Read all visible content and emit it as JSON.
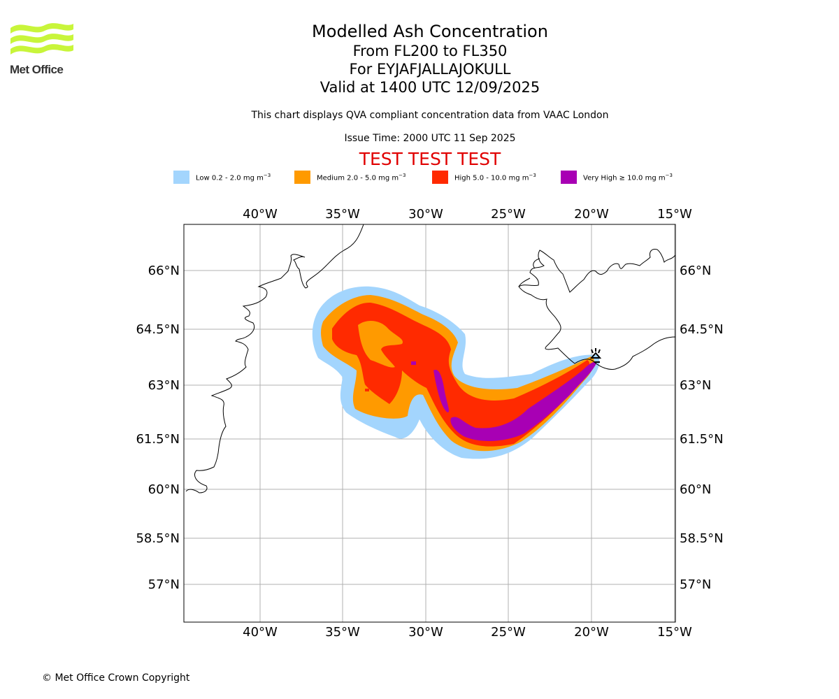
{
  "logo": {
    "text": "Met Office"
  },
  "title": {
    "line1": "Modelled Ash Concentration",
    "line2": "From FL200 to FL350",
    "line3": "For EYJAFJALLAJOKULL",
    "line4": "Valid at 1400 UTC 12/09/2025"
  },
  "subtitle": "This chart displays QVA compliant concentration data from VAAC London",
  "issue_time": "Issue Time: 2000 UTC 11 Sep 2025",
  "test_banner": "TEST TEST TEST",
  "legend": [
    {
      "label": "Low 0.2 - 2.0 mg m",
      "exp": "−3",
      "color": "#a3d5fd"
    },
    {
      "label": "Medium 2.0 - 5.0 mg m",
      "exp": "−3",
      "color": "#ff9a00"
    },
    {
      "label": "High 5.0 - 10.0 mg m",
      "exp": "−3",
      "color": "#ff2a00"
    },
    {
      "label": "Very High  ≥  10.0 mg m",
      "exp": "−3",
      "color": "#a800b4"
    }
  ],
  "map": {
    "lon_labels": [
      "40°W",
      "35°W",
      "30°W",
      "25°W",
      "20°W",
      "15°W"
    ],
    "lat_labels": [
      "66°N",
      "64.5°N",
      "63°N",
      "61.5°N",
      "60°N",
      "58.5°N",
      "57°N"
    ],
    "grid": true,
    "volcano_marker": "volcano-icon"
  },
  "copyright": "© Met Office Crown Copyright"
}
